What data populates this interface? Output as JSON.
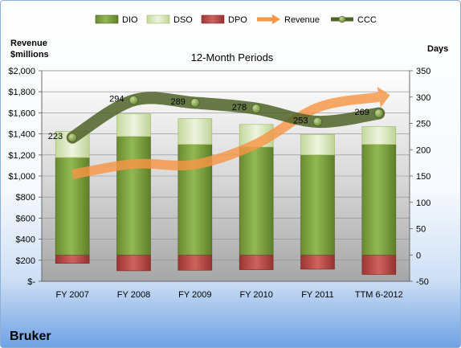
{
  "company": "Bruker",
  "chart_data": {
    "type": "bar",
    "title": "12-Month Periods",
    "ylabel_left": [
      "Revenue",
      "$millions"
    ],
    "ylabel_right": "Days",
    "categories": [
      "FY 2007",
      "FY 2008",
      "FY 2009",
      "FY 2010",
      "FY 2011",
      "TTM 6-2012"
    ],
    "left_axis": {
      "range": [
        0,
        2000
      ],
      "ticks": [
        0,
        200,
        400,
        600,
        800,
        1000,
        1200,
        1400,
        1600,
        1800,
        2000
      ],
      "tick_labels": [
        "$-",
        "$200",
        "$400",
        "$600",
        "$800",
        "$1,000",
        "$1,200",
        "$1,400",
        "$1,600",
        "$1,800",
        "$2,000"
      ]
    },
    "right_axis": {
      "range": [
        -50,
        350
      ],
      "ticks": [
        -50,
        0,
        50,
        100,
        150,
        200,
        250,
        300,
        350
      ],
      "tick_labels": [
        "-50",
        "0",
        "50",
        "100",
        "150",
        "200",
        "250",
        "300",
        "350"
      ]
    },
    "legend_position": "top",
    "legend": [
      "DIO",
      "DSO",
      "DPO",
      "Revenue",
      "CCC"
    ],
    "series": [
      {
        "name": "DIO",
        "type": "stacked-bar",
        "axis": "right",
        "color": "#77933c",
        "values": [
          185,
          225,
          210,
          205,
          190,
          210
        ]
      },
      {
        "name": "DSO",
        "type": "stacked-bar",
        "axis": "right",
        "color": "#d7e4bd",
        "values": [
          50,
          43,
          49,
          43,
          39,
          34
        ]
      },
      {
        "name": "DPO",
        "type": "stacked-bar",
        "axis": "right",
        "color": "#c0504d",
        "values": [
          -16,
          -30,
          -29,
          -28,
          -27,
          -37
        ]
      },
      {
        "name": "Revenue",
        "type": "line",
        "axis": "left",
        "color": "#f79646",
        "values": [
          1015,
          1115,
          1110,
          1305,
          1650,
          1750
        ]
      },
      {
        "name": "CCC",
        "type": "line",
        "axis": "right",
        "color": "#4f6228",
        "values": [
          223,
          294,
          289,
          278,
          253,
          269
        ],
        "data_labels": [
          "223",
          "294",
          "289",
          "278",
          "253",
          "269"
        ]
      }
    ],
    "grid": true
  }
}
